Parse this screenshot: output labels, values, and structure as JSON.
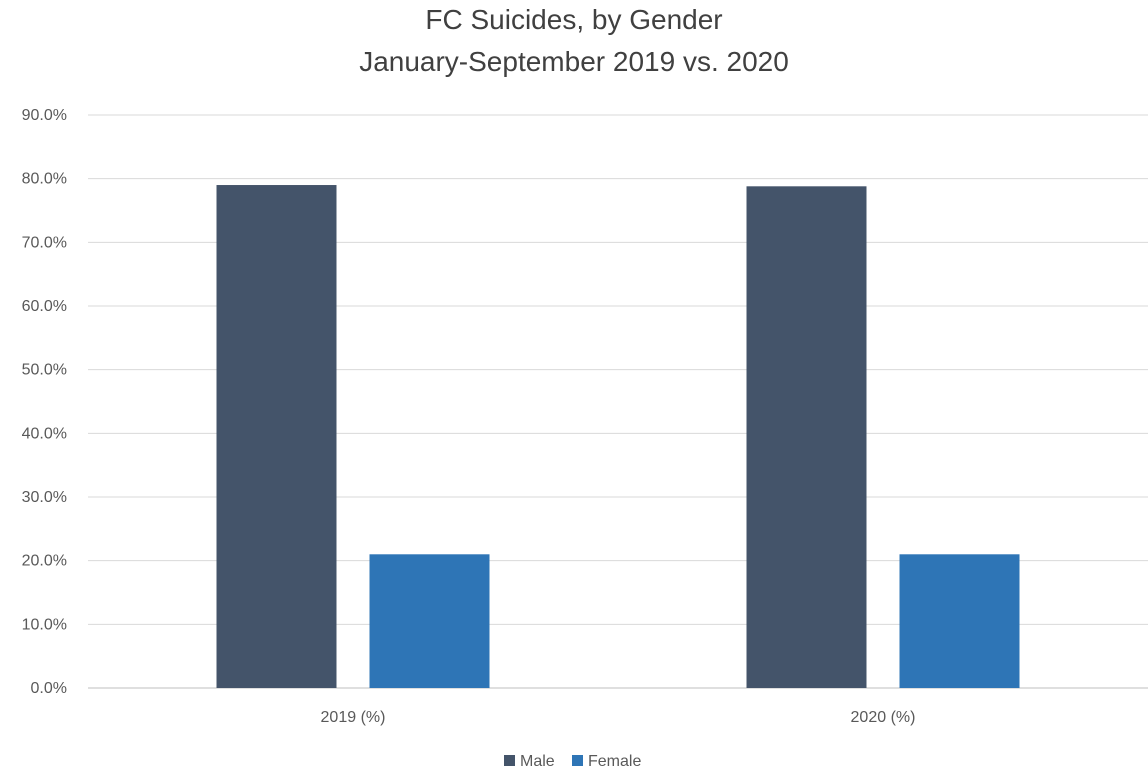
{
  "chart_data": {
    "type": "bar",
    "title": "FC Suicides, by Gender",
    "subtitle": "January-September 2019 vs. 2020",
    "categories": [
      "2019 (%)",
      "2020 (%)"
    ],
    "series": [
      {
        "name": "Male",
        "values": [
          79.0,
          78.8
        ],
        "color": "#44546a"
      },
      {
        "name": "Female",
        "values": [
          21.0,
          21.0
        ],
        "color": "#2e75b6"
      }
    ],
    "ylim": [
      0,
      90
    ],
    "yticks": [
      0,
      10,
      20,
      30,
      40,
      50,
      60,
      70,
      80,
      90
    ],
    "ytick_labels": [
      "0.0%",
      "10.0%",
      "20.0%",
      "30.0%",
      "40.0%",
      "50.0%",
      "60.0%",
      "70.0%",
      "80.0%",
      "90.0%"
    ],
    "xlabel": "",
    "ylabel": "",
    "grid": true,
    "legend_position": "bottom"
  }
}
